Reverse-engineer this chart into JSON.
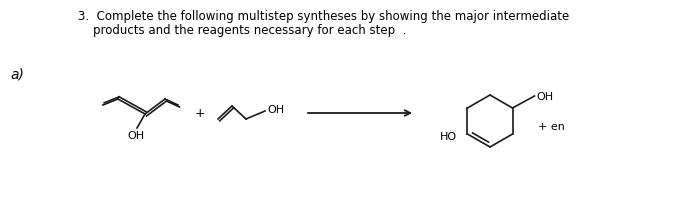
{
  "background_color": "#ffffff",
  "title_line1": "3.  Complete the following multistep syntheses by showing the major intermediate",
  "title_line2": "products and the reagents necessary for each step  .",
  "label_a": "a)",
  "plus_sign": "+",
  "en_label": "+ en",
  "ho_label": "HO",
  "oh_label1": "OH",
  "oh_label2": "OH",
  "oh_label3": "OH",
  "text_color": "#000000",
  "line_color": "#1a1a1a",
  "figsize": [
    7.0,
    2.01
  ],
  "dpi": 100
}
